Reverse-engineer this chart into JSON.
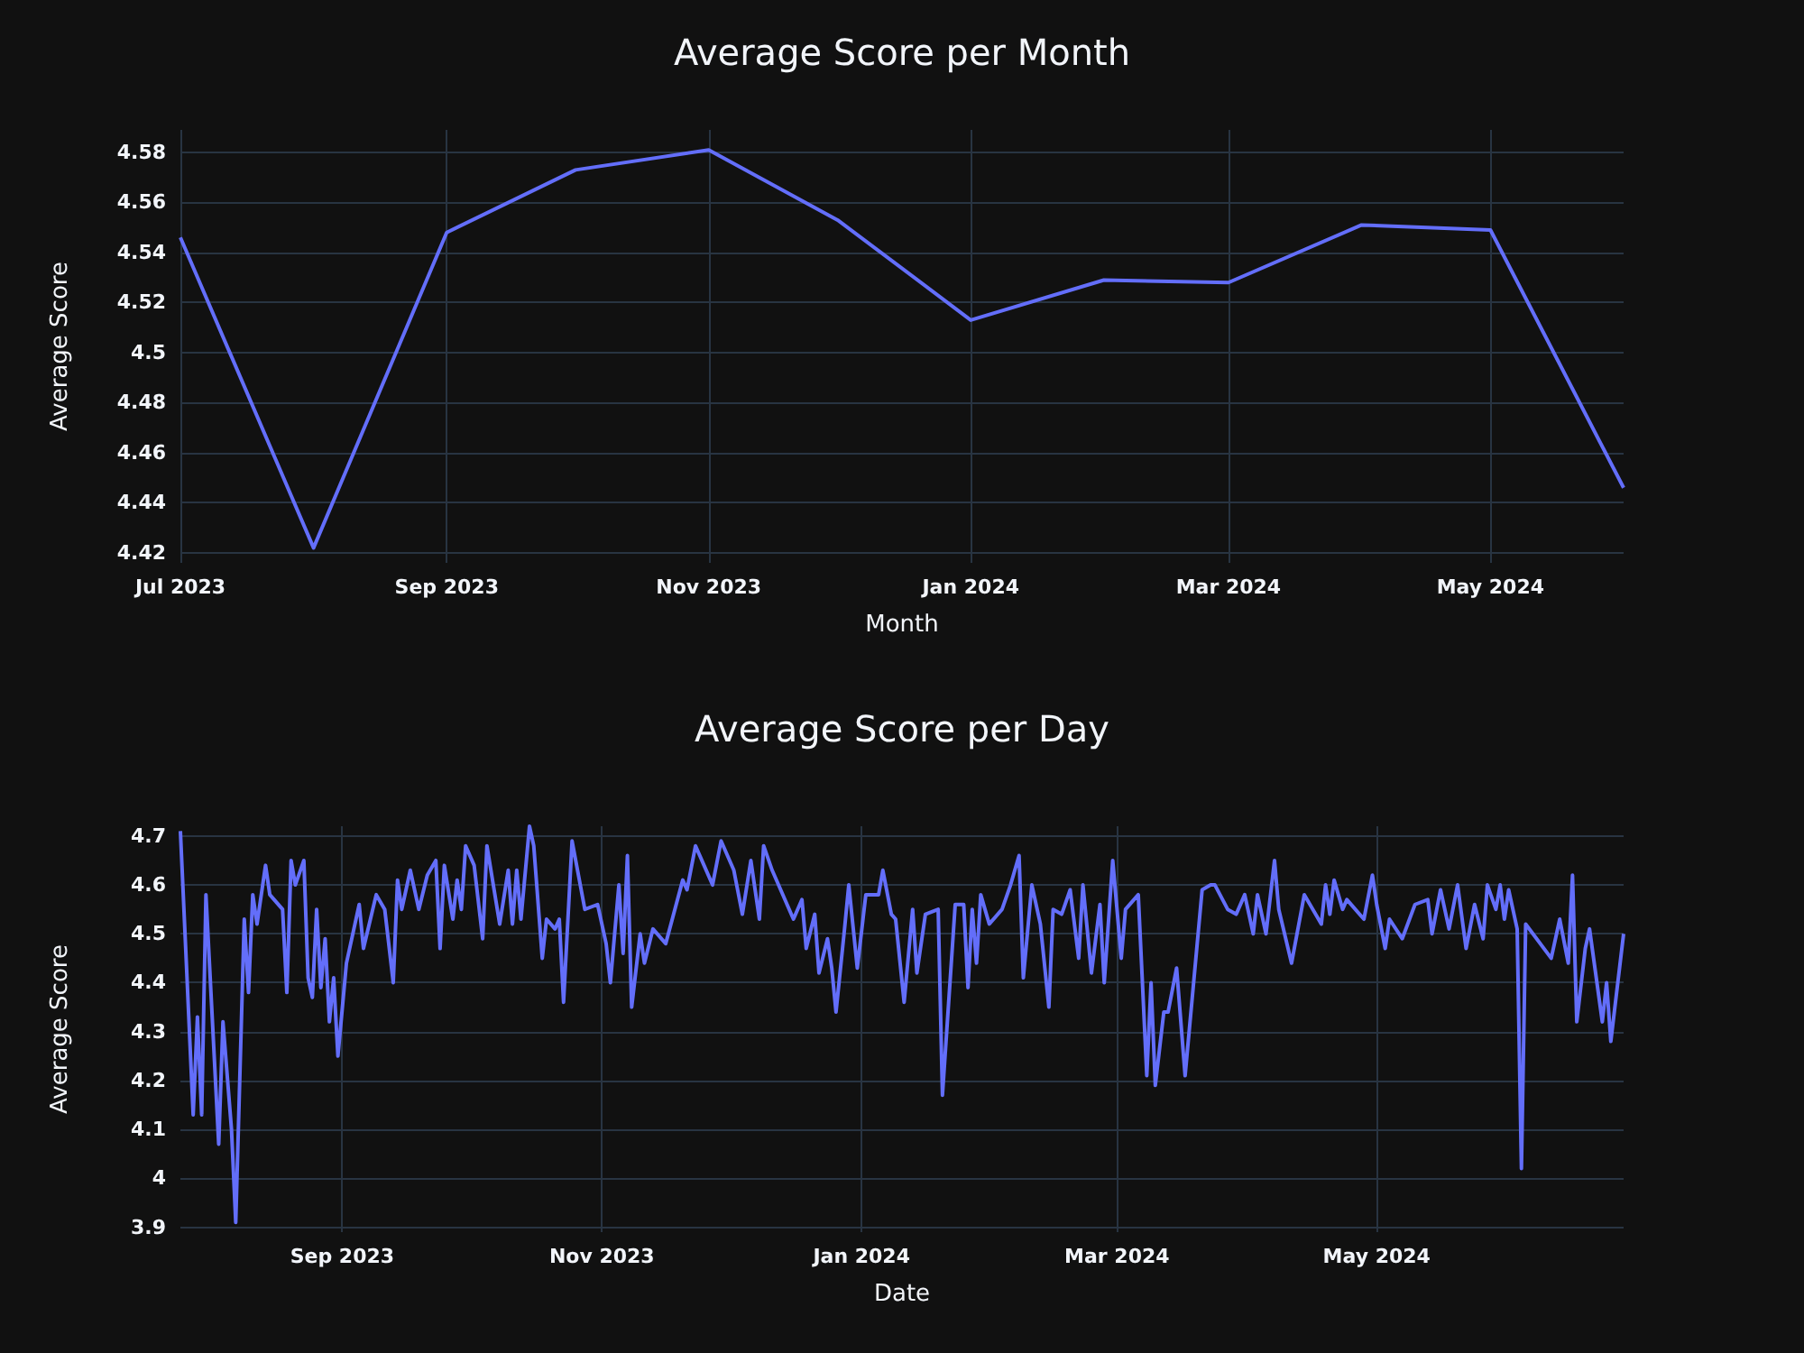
{
  "chart_data": [
    {
      "type": "line",
      "title": "Average Score per Month",
      "xlabel": "Month",
      "ylabel": "Average Score",
      "grid": true,
      "x": [
        "2023-07",
        "2023-08",
        "2023-09",
        "2023-10",
        "2023-11",
        "2023-12",
        "2024-01",
        "2024-02",
        "2024-03",
        "2024-04",
        "2024-05",
        "2024-06"
      ],
      "series": [
        {
          "color": "#636efa",
          "values": [
            4.546,
            4.422,
            4.548,
            4.573,
            4.581,
            4.553,
            4.513,
            4.529,
            4.528,
            4.551,
            4.549,
            4.446
          ]
        }
      ],
      "xlim": [
        "2023-07-01",
        "2024-06-01"
      ],
      "xticks": [
        {
          "value": "2023-07-01",
          "label": "Jul 2023"
        },
        {
          "value": "2023-09-01",
          "label": "Sep 2023"
        },
        {
          "value": "2023-11-01",
          "label": "Nov 2023"
        },
        {
          "value": "2024-01-01",
          "label": "Jan 2024"
        },
        {
          "value": "2024-03-01",
          "label": "Mar 2024"
        },
        {
          "value": "2024-05-01",
          "label": "May 2024"
        }
      ],
      "ylim": [
        4.416,
        4.589
      ],
      "yticks": [
        4.42,
        4.44,
        4.46,
        4.48,
        4.5,
        4.52,
        4.54,
        4.56,
        4.58
      ]
    },
    {
      "type": "line",
      "title": "Average Score per Day",
      "xlabel": "Date",
      "ylabel": "Average Score",
      "grid": true,
      "x": [
        "2023-07-25",
        "2023-07-28",
        "2023-07-29",
        "2023-07-30",
        "2023-07-31",
        "2023-08-03",
        "2023-08-04",
        "2023-08-06",
        "2023-08-07",
        "2023-08-09",
        "2023-08-10",
        "2023-08-11",
        "2023-08-12",
        "2023-08-14",
        "2023-08-15",
        "2023-08-18",
        "2023-08-19",
        "2023-08-20",
        "2023-08-21",
        "2023-08-23",
        "2023-08-24",
        "2023-08-25",
        "2023-08-26",
        "2023-08-27",
        "2023-08-28",
        "2023-08-29",
        "2023-08-30",
        "2023-08-31",
        "2023-09-02",
        "2023-09-05",
        "2023-09-06",
        "2023-09-09",
        "2023-09-11",
        "2023-09-13",
        "2023-09-14",
        "2023-09-15",
        "2023-09-17",
        "2023-09-19",
        "2023-09-21",
        "2023-09-23",
        "2023-09-24",
        "2023-09-25",
        "2023-09-27",
        "2023-09-28",
        "2023-09-29",
        "2023-09-30",
        "2023-10-02",
        "2023-10-04",
        "2023-10-05",
        "2023-10-08",
        "2023-10-10",
        "2023-10-11",
        "2023-10-12",
        "2023-10-13",
        "2023-10-15",
        "2023-10-16",
        "2023-10-18",
        "2023-10-19",
        "2023-10-21",
        "2023-10-22",
        "2023-10-23",
        "2023-10-25",
        "2023-10-28",
        "2023-10-31",
        "2023-11-02",
        "2023-11-03",
        "2023-11-05",
        "2023-11-06",
        "2023-11-07",
        "2023-11-08",
        "2023-11-10",
        "2023-11-11",
        "2023-11-13",
        "2023-11-16",
        "2023-11-20",
        "2023-11-21",
        "2023-11-23",
        "2023-11-25",
        "2023-11-27",
        "2023-11-29",
        "2023-12-02",
        "2023-12-04",
        "2023-12-06",
        "2023-12-08",
        "2023-12-09",
        "2023-12-11",
        "2023-12-16",
        "2023-12-18",
        "2023-12-19",
        "2023-12-21",
        "2023-12-22",
        "2023-12-24",
        "2023-12-25",
        "2023-12-26",
        "2023-12-28",
        "2023-12-29",
        "2023-12-31",
        "2024-01-02",
        "2024-01-05",
        "2024-01-06",
        "2024-01-08",
        "2024-01-09",
        "2024-01-11",
        "2024-01-13",
        "2024-01-14",
        "2024-01-16",
        "2024-01-19",
        "2024-01-20",
        "2024-01-23",
        "2024-01-25",
        "2024-01-26",
        "2024-01-27",
        "2024-01-28",
        "2024-01-29",
        "2024-01-31",
        "2024-02-03",
        "2024-02-05",
        "2024-02-07",
        "2024-02-08",
        "2024-02-10",
        "2024-02-12",
        "2024-02-14",
        "2024-02-15",
        "2024-02-17",
        "2024-02-19",
        "2024-02-21",
        "2024-02-22",
        "2024-02-24",
        "2024-02-26",
        "2024-02-27",
        "2024-02-29",
        "2024-03-02",
        "2024-03-03",
        "2024-03-06",
        "2024-03-08",
        "2024-03-09",
        "2024-03-10",
        "2024-03-12",
        "2024-03-13",
        "2024-03-15",
        "2024-03-17",
        "2024-03-21",
        "2024-03-23",
        "2024-03-24",
        "2024-03-27",
        "2024-03-29",
        "2024-03-31",
        "2024-04-02",
        "2024-04-03",
        "2024-04-05",
        "2024-04-07",
        "2024-04-08",
        "2024-04-11",
        "2024-04-14",
        "2024-04-18",
        "2024-04-19",
        "2024-04-20",
        "2024-04-21",
        "2024-04-23",
        "2024-04-24",
        "2024-04-28",
        "2024-04-30",
        "2024-05-01",
        "2024-05-03",
        "2024-05-04",
        "2024-05-07",
        "2024-05-10",
        "2024-05-13",
        "2024-05-14",
        "2024-05-16",
        "2024-05-18",
        "2024-05-20",
        "2024-05-22",
        "2024-05-24",
        "2024-05-26",
        "2024-05-27",
        "2024-05-29",
        "2024-05-30",
        "2024-05-31",
        "2024-06-01",
        "2024-06-03",
        "2024-06-04",
        "2024-06-05",
        "2024-06-11",
        "2024-06-13",
        "2024-06-15",
        "2024-06-16",
        "2024-06-17",
        "2024-06-19",
        "2024-06-20",
        "2024-06-23",
        "2024-06-24",
        "2024-06-25",
        "2024-06-28"
      ],
      "series": [
        {
          "color": "#636efa",
          "values": [
            4.71,
            4.13,
            4.33,
            4.13,
            4.58,
            4.07,
            4.32,
            4.1,
            3.91,
            4.53,
            4.38,
            4.58,
            4.52,
            4.64,
            4.58,
            4.55,
            4.38,
            4.65,
            4.6,
            4.65,
            4.41,
            4.37,
            4.55,
            4.39,
            4.49,
            4.32,
            4.41,
            4.25,
            4.44,
            4.56,
            4.47,
            4.58,
            4.55,
            4.4,
            4.61,
            4.55,
            4.63,
            4.55,
            4.62,
            4.65,
            4.47,
            4.64,
            4.53,
            4.61,
            4.55,
            4.68,
            4.64,
            4.49,
            4.68,
            4.52,
            4.63,
            4.52,
            4.63,
            4.53,
            4.72,
            4.68,
            4.45,
            4.53,
            4.51,
            4.53,
            4.36,
            4.69,
            4.55,
            4.56,
            4.48,
            4.4,
            4.6,
            4.46,
            4.66,
            4.35,
            4.5,
            4.44,
            4.51,
            4.48,
            4.61,
            4.59,
            4.68,
            4.64,
            4.6,
            4.69,
            4.63,
            4.54,
            4.65,
            4.53,
            4.68,
            4.63,
            4.53,
            4.57,
            4.47,
            4.54,
            4.42,
            4.49,
            4.43,
            4.34,
            4.51,
            4.6,
            4.43,
            4.58,
            4.58,
            4.63,
            4.54,
            4.53,
            4.36,
            4.55,
            4.42,
            4.54,
            4.55,
            4.17,
            4.56,
            4.56,
            4.39,
            4.55,
            4.44,
            4.58,
            4.52,
            4.55,
            4.6,
            4.66,
            4.41,
            4.6,
            4.52,
            4.35,
            4.55,
            4.54,
            4.59,
            4.45,
            4.6,
            4.42,
            4.56,
            4.4,
            4.65,
            4.45,
            4.55,
            4.58,
            4.21,
            4.4,
            4.19,
            4.34,
            4.34,
            4.43,
            4.21,
            4.59,
            4.6,
            4.6,
            4.55,
            4.54,
            4.58,
            4.5,
            4.58,
            4.5,
            4.65,
            4.55,
            4.44,
            4.58,
            4.52,
            4.6,
            4.54,
            4.61,
            4.55,
            4.57,
            4.53,
            4.62,
            4.56,
            4.47,
            4.53,
            4.49,
            4.56,
            4.57,
            4.5,
            4.59,
            4.51,
            4.6,
            4.47,
            4.56,
            4.49,
            4.6,
            4.55,
            4.6,
            4.53,
            4.59,
            4.51,
            4.02,
            4.52,
            4.45,
            4.53,
            4.44,
            4.62,
            4.32,
            4.47,
            4.51,
            4.32,
            4.4,
            4.28,
            4.5
          ]
        }
      ],
      "xlim": [
        "2023-07-25",
        "2024-06-28"
      ],
      "xticks": [
        {
          "value": "2023-09-01",
          "label": "Sep 2023"
        },
        {
          "value": "2023-11-01",
          "label": "Nov 2023"
        },
        {
          "value": "2024-01-01",
          "label": "Jan 2024"
        },
        {
          "value": "2024-03-01",
          "label": "Mar 2024"
        },
        {
          "value": "2024-05-01",
          "label": "May 2024"
        }
      ],
      "ylim": [
        3.89,
        4.72
      ],
      "yticks": [
        3.9,
        4,
        4.1,
        4.2,
        4.3,
        4.4,
        4.5,
        4.6,
        4.7
      ]
    }
  ]
}
